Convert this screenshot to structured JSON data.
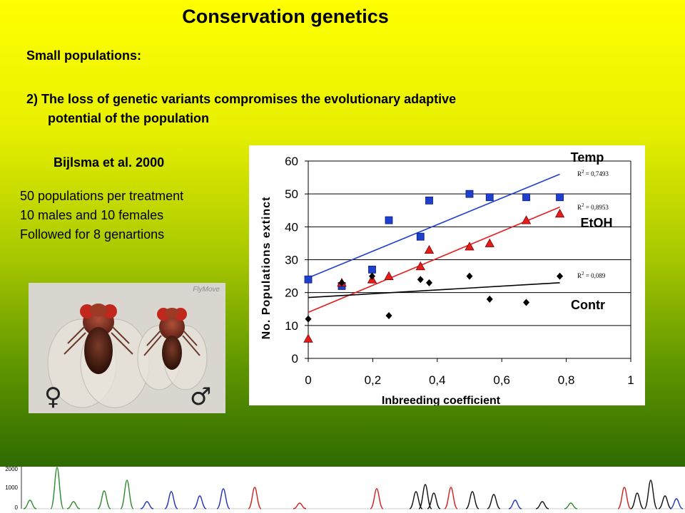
{
  "slide": {
    "title": "Conservation genetics",
    "subheading": "Small populations:",
    "point_line1": "2) The loss of genetic variants compromises  the evolutionary adaptive",
    "point_line2": "potential of the population",
    "reference": "Bijlsma et al. 2000",
    "notes": [
      "50 populations per treatment",
      "10 males and 10 females",
      "Followed for 8 genartions"
    ],
    "photo_credit": "FlyMove",
    "female_symbol": "♀",
    "male_symbol": "♂"
  },
  "chart_data": {
    "type": "scatter",
    "xlabel": "Inbreeding coefficient",
    "ylabel": "No. Populations extinct",
    "xlim": [
      0,
      1
    ],
    "ylim": [
      0,
      60
    ],
    "x_ticks": [
      "0",
      "0,2",
      "0,4",
      "0,6",
      "0,8",
      "1"
    ],
    "y_ticks": [
      "0",
      "10",
      "20",
      "30",
      "40",
      "50",
      "60"
    ],
    "grid": "horizontal",
    "series": [
      {
        "name": "Temp",
        "marker": "square",
        "color": "#1f3fd1",
        "x": [
          0,
          0.104,
          0.198,
          0.25,
          0.348,
          0.375,
          0.5,
          0.5625,
          0.676,
          0.78
        ],
        "y": [
          24,
          22,
          27,
          42,
          37,
          48,
          50,
          49,
          49,
          49
        ],
        "trend": {
          "x0": 0,
          "y0": 24.5,
          "x1": 0.78,
          "y1": 56
        },
        "r2": "R 2 = 0,7493"
      },
      {
        "name": "EtOH",
        "marker": "triangle",
        "color": "#e51c1c",
        "x": [
          0,
          0.104,
          0.198,
          0.25,
          0.348,
          0.375,
          0.5,
          0.5625,
          0.676,
          0.78
        ],
        "y": [
          6,
          23,
          24,
          25,
          28,
          33,
          34,
          35,
          42,
          44
        ],
        "trend": {
          "x0": 0,
          "y0": 14,
          "x1": 0.78,
          "y1": 46
        },
        "r2": "R 2 = 0,8953"
      },
      {
        "name": "Contr",
        "marker": "diamond",
        "color": "#000000",
        "x": [
          0,
          0.104,
          0.198,
          0.25,
          0.348,
          0.375,
          0.5,
          0.5625,
          0.676,
          0.78
        ],
        "y": [
          12,
          23,
          25,
          13,
          24,
          23,
          25,
          18,
          17,
          25
        ],
        "trend": {
          "x0": 0,
          "y0": 18.5,
          "x1": 0.78,
          "y1": 23
        },
        "r2": "R 2 = 0,089"
      }
    ],
    "strip_axis": {
      "labels": [
        "2000",
        "1000",
        "0"
      ]
    }
  },
  "colors": {
    "temp": "#1f3fd1",
    "etoh": "#e51c1c",
    "contr": "#000000",
    "trace_green": "#2e8b2e",
    "trace_blue": "#2233bb",
    "trace_red": "#d02020",
    "trace_black": "#111111"
  }
}
